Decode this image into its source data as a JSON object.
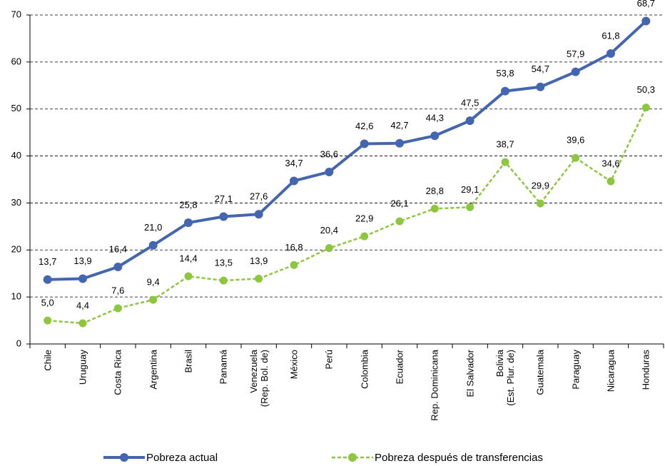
{
  "chart_data": {
    "type": "line",
    "categories": [
      "Chile",
      "Uruguay",
      "Costa Rica",
      "Argentina",
      "Brasil",
      "Panamá",
      "Venezuela\n(Rep. Bol. de)",
      "México",
      "Perú",
      "Colombia",
      "Ecuador",
      "Rep. Dominicana",
      "El Salvador",
      "Bolivia\n(Est. Plur. de)",
      "Guatemala",
      "Paraguay",
      "Nicaragua",
      "Honduras"
    ],
    "series": [
      {
        "name": "Pobreza actual",
        "color": "#4466b0",
        "values": [
          13.7,
          13.9,
          16.4,
          21.0,
          25.8,
          27.1,
          27.6,
          34.7,
          36.6,
          42.6,
          42.7,
          44.3,
          47.5,
          53.8,
          54.7,
          57.9,
          61.8,
          68.7
        ],
        "value_labels": [
          "13,7",
          "13,9",
          "16,4",
          "21,0",
          "25,8",
          "27,1",
          "27,6",
          "34,7",
          "36,6",
          "42,6",
          "42,7",
          "44,3",
          "47,5",
          "53,8",
          "54,7",
          "57,9",
          "61,8",
          "68,7"
        ]
      },
      {
        "name": "Pobreza después de transferencias",
        "color": "#8dc63f",
        "values": [
          5.0,
          4.4,
          7.6,
          9.4,
          14.4,
          13.5,
          13.9,
          16.8,
          20.4,
          22.9,
          26.1,
          28.8,
          29.1,
          38.7,
          29.9,
          39.6,
          34.6,
          50.3
        ],
        "value_labels": [
          "5,0",
          "4,4",
          "7,6",
          "9,4",
          "14,4",
          "13,5",
          "13,9",
          "16,8",
          "20,4",
          "22,9",
          "26,1",
          "28,8",
          "29,1",
          "38,7",
          "29,9",
          "39,6",
          "34,6",
          "50,3"
        ]
      }
    ],
    "ylim": [
      0,
      70
    ],
    "yticks": [
      0,
      10,
      20,
      30,
      40,
      50,
      60,
      70
    ],
    "grid": true
  }
}
